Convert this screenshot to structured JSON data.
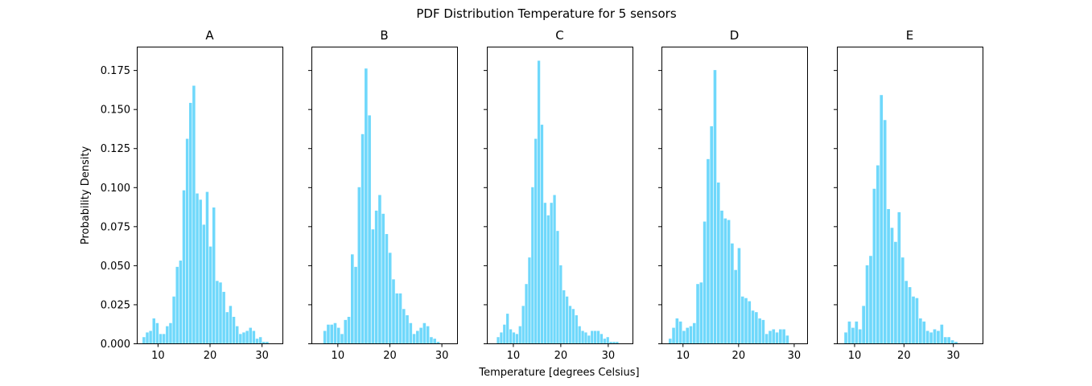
{
  "figure": {
    "suptitle": "PDF Distribution Temperature for 5 sensors",
    "xlabel": "Temperature [degrees Celsius]",
    "ylabel": "Probability Density",
    "bar_color": "#6fd8fb"
  },
  "chart_data": {
    "type": "bar",
    "title": "PDF Distribution Temperature for 5 sensors",
    "xlabel": "Temperature [degrees Celsius]",
    "ylabel": "Probability Density",
    "ylim": [
      0,
      0.19
    ],
    "yticks": [
      "0.000",
      "0.025",
      "0.050",
      "0.075",
      "0.100",
      "0.125",
      "0.150",
      "0.175"
    ],
    "xticks": [
      "10",
      "20",
      "30"
    ],
    "panels": [
      {
        "title": "A",
        "xlim": [
          6.0,
          34.0
        ],
        "x_start": 7.1,
        "bin_width": 0.64,
        "values": [
          0.004,
          0.007,
          0.008,
          0.016,
          0.013,
          0.006,
          0.006,
          0.011,
          0.013,
          0.03,
          0.049,
          0.053,
          0.098,
          0.131,
          0.154,
          0.165,
          0.096,
          0.092,
          0.076,
          0.097,
          0.062,
          0.087,
          0.04,
          0.039,
          0.033,
          0.02,
          0.024,
          0.017,
          0.011,
          0.006,
          0.007,
          0.008,
          0.01,
          0.008,
          0.003,
          0.004,
          0.001,
          0.001
        ]
      },
      {
        "title": "B",
        "xlim": [
          5.0,
          33.0
        ],
        "x_start": 7.3,
        "bin_width": 0.66,
        "values": [
          0.008,
          0.012,
          0.012,
          0.013,
          0.01,
          0.006,
          0.015,
          0.017,
          0.057,
          0.049,
          0.1,
          0.134,
          0.176,
          0.146,
          0.073,
          0.085,
          0.095,
          0.083,
          0.07,
          0.058,
          0.041,
          0.032,
          0.032,
          0.022,
          0.018,
          0.013,
          0.006,
          0.008,
          0.01,
          0.013,
          0.011,
          0.004,
          0.003,
          0.001
        ]
      },
      {
        "title": "C",
        "xlim": [
          4.5,
          35.2
        ],
        "x_start": 6.6,
        "bin_width": 0.66,
        "values": [
          0.004,
          0.007,
          0.012,
          0.019,
          0.009,
          0.007,
          0.006,
          0.011,
          0.024,
          0.038,
          0.055,
          0.1,
          0.131,
          0.181,
          0.14,
          0.09,
          0.082,
          0.09,
          0.095,
          0.072,
          0.05,
          0.034,
          0.03,
          0.024,
          0.022,
          0.018,
          0.011,
          0.008,
          0.007,
          0.005,
          0.008,
          0.008,
          0.008,
          0.006,
          0.003,
          0.004,
          0.001,
          0.001,
          0.001
        ]
      },
      {
        "title": "D",
        "xlim": [
          6.2,
          32.4
        ],
        "x_start": 7.5,
        "bin_width": 0.62,
        "values": [
          0.003,
          0.01,
          0.016,
          0.014,
          0.008,
          0.01,
          0.011,
          0.013,
          0.038,
          0.039,
          0.078,
          0.118,
          0.139,
          0.175,
          0.103,
          0.085,
          0.08,
          0.079,
          0.064,
          0.047,
          0.061,
          0.03,
          0.029,
          0.027,
          0.021,
          0.02,
          0.016,
          0.015,
          0.006,
          0.008,
          0.009,
          0.007,
          0.009,
          0.009,
          0.005
        ]
      },
      {
        "title": "E",
        "xlim": [
          6.5,
          36.0
        ],
        "x_start": 8.0,
        "bin_width": 0.72,
        "values": [
          0.007,
          0.014,
          0.01,
          0.014,
          0.009,
          0.024,
          0.05,
          0.056,
          0.099,
          0.114,
          0.159,
          0.143,
          0.086,
          0.074,
          0.065,
          0.084,
          0.055,
          0.04,
          0.036,
          0.03,
          0.029,
          0.016,
          0.014,
          0.008,
          0.007,
          0.009,
          0.008,
          0.012,
          0.004,
          0.004,
          0.002,
          0.001
        ]
      }
    ]
  }
}
